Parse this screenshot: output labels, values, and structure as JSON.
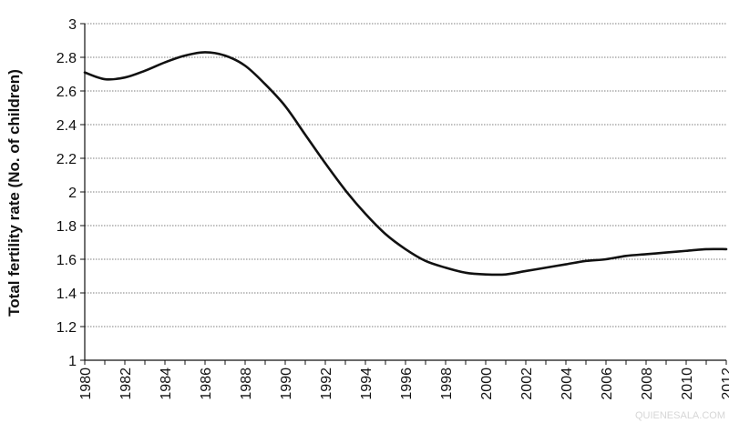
{
  "chart_data": {
    "type": "line",
    "title": "",
    "xlabel": "",
    "ylabel": "Total fertility rate (No. of children)",
    "ylim": [
      1,
      3
    ],
    "yticks": [
      1,
      1.2,
      1.4,
      1.6,
      1.8,
      2,
      2.2,
      2.4,
      2.6,
      2.8,
      3
    ],
    "xlim": [
      1980,
      2012
    ],
    "xticks": [
      1980,
      1982,
      1984,
      1986,
      1988,
      1990,
      1992,
      1994,
      1996,
      1998,
      2000,
      2002,
      2004,
      2006,
      2008,
      2010,
      2012
    ],
    "grid": "horizontal dotted",
    "legend": "none",
    "line_color": "#111111",
    "series": [
      {
        "x": [
          1980,
          1981,
          1982,
          1983,
          1984,
          1985,
          1986,
          1987,
          1988,
          1989,
          1990,
          1991,
          1992,
          1993,
          1994,
          1995,
          1996,
          1997,
          1998,
          1999,
          2000,
          2001,
          2002,
          2003,
          2004,
          2005,
          2006,
          2007,
          2008,
          2009,
          2010,
          2011,
          2012
        ],
        "values": [
          2.71,
          2.67,
          2.68,
          2.72,
          2.77,
          2.81,
          2.83,
          2.81,
          2.75,
          2.64,
          2.51,
          2.34,
          2.17,
          2.01,
          1.87,
          1.75,
          1.66,
          1.59,
          1.55,
          1.52,
          1.51,
          1.51,
          1.53,
          1.55,
          1.57,
          1.59,
          1.6,
          1.62,
          1.63,
          1.64,
          1.65,
          1.66,
          1.66
        ]
      }
    ]
  },
  "watermark": "QUIENESALA.COM"
}
